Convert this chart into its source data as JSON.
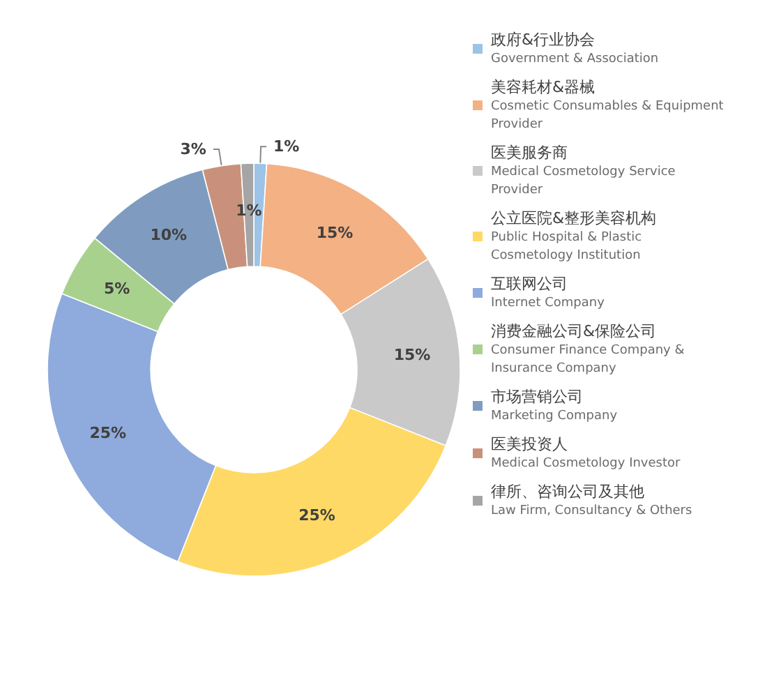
{
  "chart_data": {
    "type": "donut",
    "categories": [
      "政府&行业协会\nGovernment & Association",
      "美容耗材&器械\nCosmetic Consumables & Equipment Provider",
      "医美服务商\nMedical Cosmetology Service Provider",
      "公立医院&整形美容机构\nPublic Hospital & Plastic Cosmetology Institution",
      "互联网公司\nInternet Company",
      "消费金融公司&保险公司\nConsumer Finance Company & Insurance Company",
      "市场营销公司\nMarketing Company",
      "医美投资人\nMedical Cosmetology Investor",
      "律所、咨询公司及其他\nLaw Firm, Consultancy & Others"
    ],
    "values": [
      1,
      15,
      15,
      25,
      25,
      5,
      10,
      3,
      1
    ],
    "value_labels": [
      "1%",
      "15%",
      "15%",
      "25%",
      "25%",
      "5%",
      "10%",
      "3%",
      "1%"
    ],
    "colors": [
      "#9dc3e6",
      "#f4b183",
      "#c9c9c9",
      "#ffd966",
      "#8faadc",
      "#a9d18e",
      "#7f9cc0",
      "#c9917b",
      "#a5a5a5"
    ],
    "legend": "right"
  }
}
